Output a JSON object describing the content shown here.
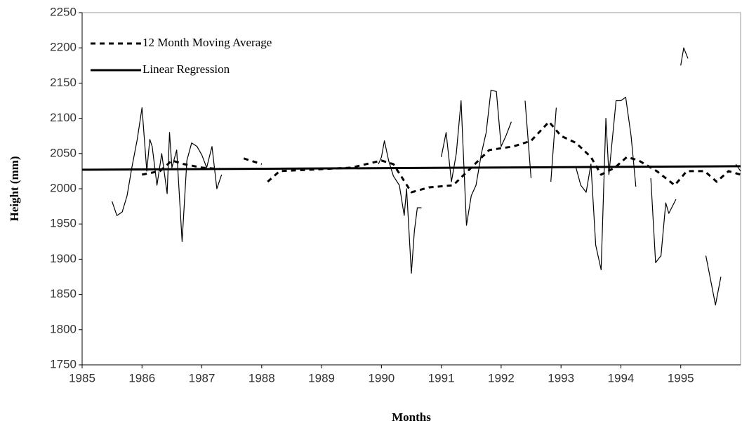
{
  "chart_data": {
    "type": "line",
    "xlabel": "Months",
    "ylabel": "Height (mm)",
    "xlim": [
      1985,
      1996
    ],
    "xticks": [
      1985,
      1986,
      1987,
      1988,
      1989,
      1990,
      1991,
      1992,
      1993,
      1994,
      1995
    ],
    "ylim": [
      1750,
      2250
    ],
    "yticks": [
      1750,
      1800,
      1850,
      1900,
      1950,
      2000,
      2050,
      2100,
      2150,
      2200,
      2250
    ],
    "legend": "top-left",
    "series": [
      {
        "color": "#000000",
        "style": "thin",
        "x": [
          1985.5,
          1985.58,
          1985.67,
          1985.75,
          1985.83,
          1985.92,
          1986.0,
          1986.08,
          1986.13,
          1986.17,
          1986.25,
          1986.33,
          1986.42,
          1986.46,
          1986.5,
          1986.58,
          1986.67,
          1986.75,
          1986.83,
          1986.92,
          1987.0,
          1987.08,
          1987.17,
          1987.25,
          1987.33,
          1987.4,
          1989.95,
          1990.0,
          1990.05,
          1990.12,
          1990.2,
          1990.3,
          1990.38,
          1990.42,
          1990.5,
          1990.55,
          1990.6,
          1990.67,
          1990.75,
          1991.0,
          1991.08,
          1991.17,
          1991.25,
          1991.33,
          1991.42,
          1991.5,
          1991.58,
          1991.67,
          1991.75,
          1991.83,
          1991.92,
          1992.0,
          1992.08,
          1992.17,
          1992.3,
          1992.4,
          1992.5,
          1992.6,
          1992.83,
          1992.92,
          1993.0,
          1993.25,
          1993.33,
          1993.42,
          1993.5,
          1993.58,
          1993.67,
          1993.75,
          1993.8,
          1993.92,
          1994.0,
          1994.08,
          1994.17,
          1994.25,
          1994.35,
          1994.5,
          1994.58,
          1994.67,
          1994.75,
          1994.8,
          1994.92,
          1994.95,
          1995.0,
          1995.05,
          1995.12,
          1995.3,
          1995.42,
          1995.5,
          1995.58,
          1995.67,
          1995.8,
          1995.92,
          1996.0
        ],
        "values": [
          1982,
          1962,
          1967,
          1990,
          2030,
          2070,
          2115,
          2025,
          2070,
          2060,
          2005,
          2050,
          1993,
          2080,
          2030,
          2055,
          1925,
          2040,
          2065,
          2060,
          2048,
          2030,
          2060,
          2000,
          2020,
          null,
          2035,
          2045,
          2068,
          2040,
          2018,
          2005,
          1962,
          2000,
          1880,
          1940,
          1973,
          1973,
          null,
          2045,
          2080,
          2010,
          2050,
          2125,
          1948,
          1990,
          2005,
          2050,
          2080,
          2140,
          2138,
          2060,
          2075,
          2095,
          null,
          2125,
          2015,
          null,
          2010,
          2115,
          null,
          2030,
          2005,
          1995,
          2035,
          1920,
          1885,
          2100,
          2020,
          2125,
          2125,
          2130,
          2075,
          2003,
          null,
          2015,
          1895,
          1905,
          1980,
          1965,
          1985,
          null,
          2175,
          2200,
          2185,
          null,
          1905,
          1870,
          1835,
          1875,
          null,
          2035,
          2025
        ]
      },
      {
        "name": "12 Month Moving Average",
        "color": "#000000",
        "style": "dashed",
        "x": [
          1986.0,
          1986.3,
          1986.5,
          1986.7,
          1987.0,
          1987.3,
          1987.5,
          1987.7,
          1988.0,
          1988.05,
          1988.1,
          1988.3,
          1988.8,
          1989.5,
          1990.0,
          1990.2,
          1990.5,
          1990.8,
          1991.2,
          1991.5,
          1991.8,
          1992.2,
          1992.5,
          1992.8,
          1993.0,
          1993.25,
          1993.5,
          1993.67,
          1993.9,
          1994.1,
          1994.3,
          1994.6,
          1994.9,
          1995.1,
          1995.4,
          1995.6,
          1995.8,
          1996.0
        ],
        "values": [
          2020,
          2025,
          2040,
          2035,
          2030,
          2028,
          null,
          2043,
          2035,
          null,
          2010,
          2025,
          2027,
          2030,
          2040,
          2035,
          1995,
          2002,
          2005,
          2030,
          2055,
          2060,
          2068,
          2095,
          2075,
          2065,
          2045,
          2020,
          2030,
          2045,
          2040,
          2025,
          2005,
          2025,
          2025,
          2010,
          2025,
          2020
        ]
      },
      {
        "name": "Linear Regression",
        "color": "#000000",
        "style": "thick",
        "x": [
          1985,
          1996
        ],
        "values": [
          2027,
          2032
        ]
      }
    ]
  }
}
